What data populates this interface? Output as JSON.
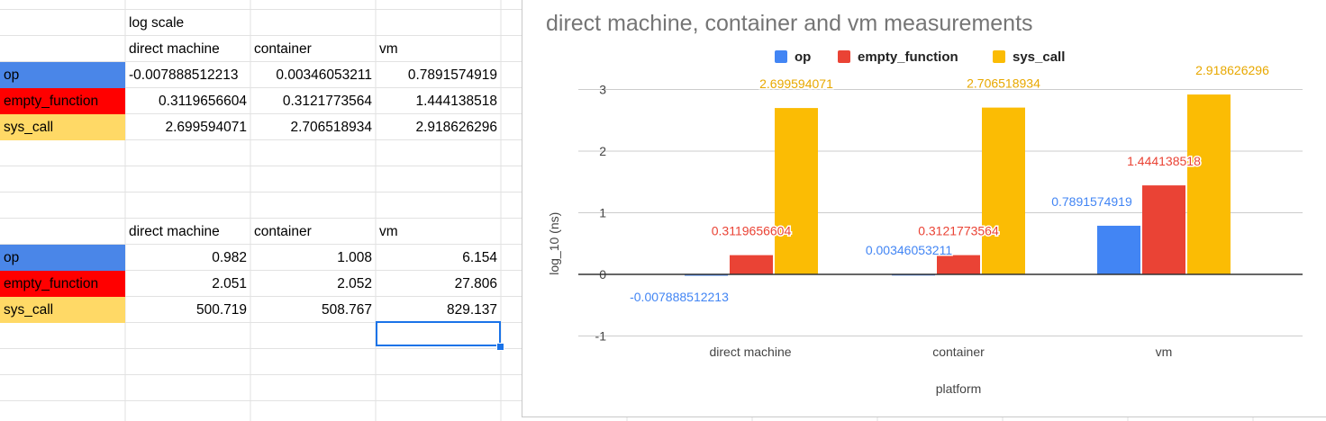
{
  "sheet": {
    "log_header": "log scale",
    "log_columns": [
      "direct machine",
      "container",
      "vm"
    ],
    "log_rows": [
      {
        "label": "op",
        "values": [
          "-0.007888512213",
          "0.00346053211",
          "0.7891574919"
        ]
      },
      {
        "label": "empty_function",
        "values": [
          "0.3119656604",
          "0.3121773564",
          "1.444138518"
        ]
      },
      {
        "label": "sys_call",
        "values": [
          "2.699594071",
          "2.706518934",
          "2.918626296"
        ]
      }
    ],
    "raw_columns": [
      "direct machine",
      "container",
      "vm"
    ],
    "raw_rows": [
      {
        "label": "op",
        "values": [
          "0.982",
          "1.008",
          "6.154"
        ]
      },
      {
        "label": "empty_function",
        "values": [
          "2.051",
          "2.052",
          "27.806"
        ]
      },
      {
        "label": "sys_call",
        "values": [
          "500.719",
          "508.767",
          "829.137"
        ]
      }
    ],
    "row_colors": {
      "op": "#4a86e8",
      "empty_function": "#ff0000",
      "sys_call": "#ffd966"
    }
  },
  "chart_data": {
    "type": "bar",
    "title": "direct machine, container and vm measurements",
    "xlabel": "platform",
    "ylabel": "log_10 (ns)",
    "categories": [
      "direct machine",
      "container",
      "vm"
    ],
    "ylim": [
      -1,
      3
    ],
    "yticks": [
      "-1",
      "0",
      "1",
      "2",
      "3"
    ],
    "grid": true,
    "legend_position": "top",
    "series": [
      {
        "name": "op",
        "color": "#4285f4",
        "values": [
          -0.007888512213,
          0.00346053211,
          0.7891574919
        ],
        "labels": [
          "-0.007888512213",
          "0.00346053211",
          "0.7891574919"
        ]
      },
      {
        "name": "empty_function",
        "color": "#ea4335",
        "values": [
          0.3119656604,
          0.3121773564,
          1.444138518
        ],
        "labels": [
          "0.3119656604",
          "0.3121773564",
          "1.444138518"
        ]
      },
      {
        "name": "sys_call",
        "color": "#fbbc04",
        "values": [
          2.699594071,
          2.706518934,
          2.918626296
        ],
        "labels": [
          "2.699594071",
          "2.706518934",
          "2.918626296"
        ]
      }
    ]
  }
}
